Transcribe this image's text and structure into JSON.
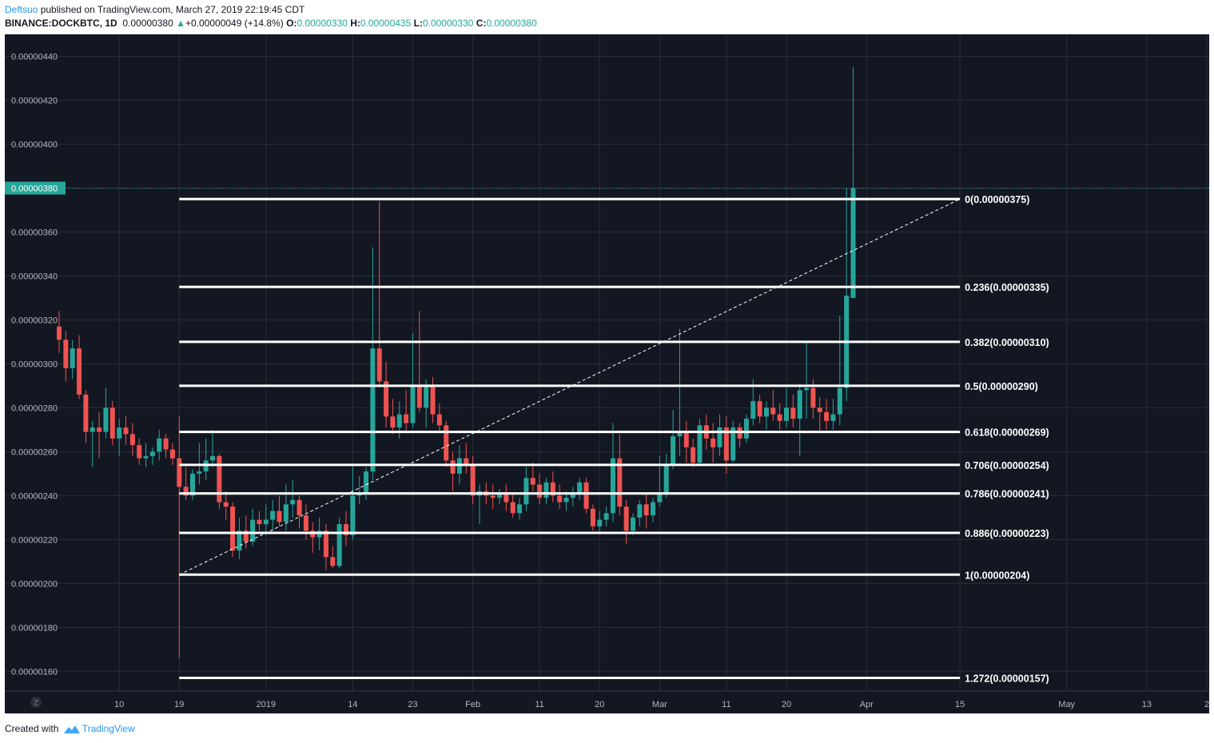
{
  "header": {
    "author": "Deftsuo",
    "published_text": "published on TradingView.com, March 27, 2019 22:19:45 CDT",
    "symbol_line": "BINANCE:DOCKBTC, 1D",
    "last": "0.00000380",
    "change_arrow": "▲",
    "change": "+0.00000049 (+14.8%)",
    "o_label": "O:",
    "o_value": "0.00000330",
    "h_label": "H:",
    "h_value": "0.00000435",
    "l_label": "L:",
    "l_value": "0.00000330",
    "c_label": "C:",
    "c_value": "0.00000380"
  },
  "footer": {
    "created_with": "Created with",
    "brand": "TradingView"
  },
  "colors": {
    "background": "#131722",
    "grid": "#2a2e39",
    "up": "#26a69a",
    "down": "#ef5350",
    "fib_line": "#ffffff",
    "axis_text": "#b2b5be",
    "price_tag": "#26a69a"
  },
  "chart_data": {
    "type": "candlestick",
    "symbol": "BINANCE:DOCKBTC",
    "interval": "1D",
    "ylim": [
      1.51e-06,
      4.5e-06
    ],
    "y_ticks": [
      "0.00000440",
      "0.00000420",
      "0.00000400",
      "0.00000380",
      "0.00000360",
      "0.00000340",
      "0.00000320",
      "0.00000300",
      "0.00000280",
      "0.00000260",
      "0.00000240",
      "0.00000220",
      "0.00000200",
      "0.00000180",
      "0.00000160"
    ],
    "y_tick_values": [
      4.4e-06,
      4.2e-06,
      4e-06,
      3.8e-06,
      3.6e-06,
      3.4e-06,
      3.2e-06,
      3e-06,
      2.8e-06,
      2.6e-06,
      2.4e-06,
      2.2e-06,
      2e-06,
      1.8e-06,
      1.6e-06
    ],
    "x_start_date": "2018-12-01",
    "x_end_date": "2019-05-22",
    "x_ticks": [
      {
        "label": "10",
        "date": "2018-12-10"
      },
      {
        "label": "19",
        "date": "2018-12-19"
      },
      {
        "label": "2019",
        "date": "2019-01-01"
      },
      {
        "label": "14",
        "date": "2019-01-14"
      },
      {
        "label": "23",
        "date": "2019-01-23"
      },
      {
        "label": "Feb",
        "date": "2019-02-01"
      },
      {
        "label": "11",
        "date": "2019-02-11"
      },
      {
        "label": "20",
        "date": "2019-02-20"
      },
      {
        "label": "Mar",
        "date": "2019-03-01"
      },
      {
        "label": "11",
        "date": "2019-03-11"
      },
      {
        "label": "20",
        "date": "2019-03-20"
      },
      {
        "label": "Apr",
        "date": "2019-04-01"
      },
      {
        "label": "15",
        "date": "2019-04-15"
      },
      {
        "label": "May",
        "date": "2019-05-01"
      },
      {
        "label": "13",
        "date": "2019-05-13"
      },
      {
        "label": "2",
        "date": "2019-05-22"
      }
    ],
    "last_price": 3.8e-06,
    "last_price_label": "0.00000380",
    "candles_start_date": "2018-12-01",
    "candles": [
      [
        3.17e-06,
        3.24e-06,
        3.05e-06,
        3.11e-06
      ],
      [
        3.11e-06,
        3.15e-06,
        2.92e-06,
        2.98e-06
      ],
      [
        2.98e-06,
        3.11e-06,
        2.93e-06,
        3.07e-06
      ],
      [
        3.07e-06,
        3.13e-06,
        2.84e-06,
        2.86e-06
      ],
      [
        2.86e-06,
        2.88e-06,
        2.64e-06,
        2.69e-06
      ],
      [
        2.69e-06,
        2.74e-06,
        2.53e-06,
        2.71e-06
      ],
      [
        2.71e-06,
        2.78e-06,
        2.57e-06,
        2.69e-06
      ],
      [
        2.69e-06,
        2.89e-06,
        2.66e-06,
        2.8e-06
      ],
      [
        2.8e-06,
        2.83e-06,
        2.63e-06,
        2.66e-06
      ],
      [
        2.66e-06,
        2.75e-06,
        2.58e-06,
        2.71e-06
      ],
      [
        2.71e-06,
        2.76e-06,
        2.63e-06,
        2.68e-06
      ],
      [
        2.68e-06,
        2.73e-06,
        2.58e-06,
        2.63e-06
      ],
      [
        2.63e-06,
        2.66e-06,
        2.54e-06,
        2.57e-06
      ],
      [
        2.57e-06,
        2.64e-06,
        2.53e-06,
        2.58e-06
      ],
      [
        2.58e-06,
        2.62e-06,
        2.54e-06,
        2.6e-06
      ],
      [
        2.6e-06,
        2.7e-06,
        2.56e-06,
        2.66e-06
      ],
      [
        2.66e-06,
        2.68e-06,
        2.57e-06,
        2.61e-06
      ],
      [
        2.61e-06,
        2.64e-06,
        2.54e-06,
        2.57e-06
      ],
      [
        2.57e-06,
        2.76e-06,
        1.66e-06,
        2.44e-06
      ],
      [
        2.44e-06,
        2.53e-06,
        2.38e-06,
        2.4e-06
      ],
      [
        2.4e-06,
        2.52e-06,
        2.38e-06,
        2.5e-06
      ],
      [
        2.5e-06,
        2.64e-06,
        2.45e-06,
        2.51e-06
      ],
      [
        2.51e-06,
        2.66e-06,
        2.47e-06,
        2.56e-06
      ],
      [
        2.56e-06,
        2.7e-06,
        2.53e-06,
        2.58e-06
      ],
      [
        2.58e-06,
        2.59e-06,
        2.34e-06,
        2.37e-06
      ],
      [
        2.37e-06,
        2.42e-06,
        2.29e-06,
        2.35e-06
      ],
      [
        2.35e-06,
        2.37e-06,
        2.12e-06,
        2.15e-06
      ],
      [
        2.15e-06,
        2.3e-06,
        2.11e-06,
        2.24e-06
      ],
      [
        2.24e-06,
        2.31e-06,
        2.16e-06,
        2.19e-06
      ],
      [
        2.19e-06,
        2.34e-06,
        2.17e-06,
        2.29e-06
      ],
      [
        2.29e-06,
        2.33e-06,
        2.24e-06,
        2.27e-06
      ],
      [
        2.27e-06,
        2.36e-06,
        2.22e-06,
        2.29e-06
      ],
      [
        2.29e-06,
        2.38e-06,
        2.24e-06,
        2.33e-06
      ],
      [
        2.33e-06,
        2.4e-06,
        2.26e-06,
        2.28e-06
      ],
      [
        2.28e-06,
        2.45e-06,
        2.24e-06,
        2.36e-06
      ],
      [
        2.36e-06,
        2.47e-06,
        2.3e-06,
        2.38e-06
      ],
      [
        2.38e-06,
        2.4e-06,
        2.25e-06,
        2.31e-06
      ],
      [
        2.31e-06,
        2.36e-06,
        2.2e-06,
        2.24e-06
      ],
      [
        2.24e-06,
        2.28e-06,
        2.14e-06,
        2.21e-06
      ],
      [
        2.21e-06,
        2.3e-06,
        2.15e-06,
        2.24e-06
      ],
      [
        2.24e-06,
        2.27e-06,
        2.06e-06,
        2.12e-06
      ],
      [
        2.12e-06,
        2.17e-06,
        2.07e-06,
        2.08e-06
      ],
      [
        2.08e-06,
        2.3e-06,
        2.07e-06,
        2.27e-06
      ],
      [
        2.27e-06,
        2.33e-06,
        2.17e-06,
        2.22e-06
      ],
      [
        2.22e-06,
        2.54e-06,
        2.2e-06,
        2.4e-06
      ],
      [
        2.4e-06,
        2.49e-06,
        2.36e-06,
        2.41e-06
      ],
      [
        2.41e-06,
        2.53e-06,
        2.38e-06,
        2.51e-06
      ],
      [
        2.51e-06,
        3.53e-06,
        2.47e-06,
        3.07e-06
      ],
      [
        3.07e-06,
        3.74e-06,
        2.89e-06,
        2.92e-06
      ],
      [
        2.92e-06,
        3.01e-06,
        2.71e-06,
        2.76e-06
      ],
      [
        2.76e-06,
        2.84e-06,
        2.68e-06,
        2.71e-06
      ],
      [
        2.71e-06,
        2.83e-06,
        2.66e-06,
        2.77e-06
      ],
      [
        2.77e-06,
        2.88e-06,
        2.69e-06,
        2.73e-06
      ],
      [
        2.73e-06,
        3.14e-06,
        2.71e-06,
        2.9e-06
      ],
      [
        2.9e-06,
        3.24e-06,
        2.78e-06,
        2.8e-06
      ],
      [
        2.8e-06,
        2.93e-06,
        2.71e-06,
        2.9e-06
      ],
      [
        2.9e-06,
        2.94e-06,
        2.73e-06,
        2.77e-06
      ],
      [
        2.77e-06,
        2.82e-06,
        2.69e-06,
        2.72e-06
      ],
      [
        2.72e-06,
        2.74e-06,
        2.53e-06,
        2.56e-06
      ],
      [
        2.56e-06,
        2.6e-06,
        2.42e-06,
        2.5e-06
      ],
      [
        2.5e-06,
        2.63e-06,
        2.45e-06,
        2.57e-06
      ],
      [
        2.57e-06,
        2.64e-06,
        2.5e-06,
        2.54e-06
      ],
      [
        2.54e-06,
        2.58e-06,
        2.36e-06,
        2.4e-06
      ],
      [
        2.4e-06,
        2.45e-06,
        2.27e-06,
        2.42e-06
      ],
      [
        2.42e-06,
        2.46e-06,
        2.36e-06,
        2.4e-06
      ],
      [
        2.4e-06,
        2.45e-06,
        2.34e-06,
        2.39e-06
      ],
      [
        2.39e-06,
        2.43e-06,
        2.36e-06,
        2.41e-06
      ],
      [
        2.41e-06,
        2.45e-06,
        2.33e-06,
        2.37e-06
      ],
      [
        2.37e-06,
        2.41e-06,
        2.3e-06,
        2.32e-06
      ],
      [
        2.32e-06,
        2.39e-06,
        2.29e-06,
        2.36e-06
      ],
      [
        2.36e-06,
        2.53e-06,
        2.33e-06,
        2.48e-06
      ],
      [
        2.48e-06,
        2.55e-06,
        2.42e-06,
        2.45e-06
      ],
      [
        2.45e-06,
        2.5e-06,
        2.36e-06,
        2.39e-06
      ],
      [
        2.39e-06,
        2.48e-06,
        2.36e-06,
        2.46e-06
      ],
      [
        2.46e-06,
        2.51e-06,
        2.37e-06,
        2.4e-06
      ],
      [
        2.4e-06,
        2.45e-06,
        2.34e-06,
        2.37e-06
      ],
      [
        2.37e-06,
        2.42e-06,
        2.33e-06,
        2.39e-06
      ],
      [
        2.39e-06,
        2.44e-06,
        2.35e-06,
        2.41e-06
      ],
      [
        2.41e-06,
        2.48e-06,
        2.38e-06,
        2.46e-06
      ],
      [
        2.46e-06,
        2.48e-06,
        2.32e-06,
        2.34e-06
      ],
      [
        2.34e-06,
        2.36e-06,
        2.24e-06,
        2.26e-06
      ],
      [
        2.26e-06,
        2.33e-06,
        2.23e-06,
        2.29e-06
      ],
      [
        2.29e-06,
        2.35e-06,
        2.26e-06,
        2.32e-06
      ],
      [
        2.32e-06,
        2.73e-06,
        2.28e-06,
        2.57e-06
      ],
      [
        2.57e-06,
        2.68e-06,
        2.31e-06,
        2.35e-06
      ],
      [
        2.35e-06,
        2.38e-06,
        2.18e-06,
        2.24e-06
      ],
      [
        2.24e-06,
        2.32e-06,
        2.22e-06,
        2.3e-06
      ],
      [
        2.3e-06,
        2.38e-06,
        2.26e-06,
        2.36e-06
      ],
      [
        2.36e-06,
        2.41e-06,
        2.25e-06,
        2.31e-06
      ],
      [
        2.31e-06,
        2.39e-06,
        2.28e-06,
        2.37e-06
      ],
      [
        2.37e-06,
        2.58e-06,
        2.35e-06,
        2.41e-06
      ],
      [
        2.41e-06,
        2.59e-06,
        2.39e-06,
        2.54e-06
      ],
      [
        2.54e-06,
        2.79e-06,
        2.52e-06,
        2.67e-06
      ],
      [
        2.67e-06,
        3.16e-06,
        2.58e-06,
        2.69e-06
      ],
      [
        2.69e-06,
        2.74e-06,
        2.55e-06,
        2.62e-06
      ],
      [
        2.62e-06,
        2.66e-06,
        2.53e-06,
        2.55e-06
      ],
      [
        2.55e-06,
        2.75e-06,
        2.54e-06,
        2.72e-06
      ],
      [
        2.72e-06,
        2.77e-06,
        2.61e-06,
        2.66e-06
      ],
      [
        2.66e-06,
        2.73e-06,
        2.55e-06,
        2.62e-06
      ],
      [
        2.62e-06,
        2.77e-06,
        2.58e-06,
        2.71e-06
      ],
      [
        2.71e-06,
        2.76e-06,
        2.5e-06,
        2.56e-06
      ],
      [
        2.56e-06,
        2.74e-06,
        2.55e-06,
        2.71e-06
      ],
      [
        2.71e-06,
        2.73e-06,
        2.62e-06,
        2.66e-06
      ],
      [
        2.66e-06,
        2.77e-06,
        2.64e-06,
        2.75e-06
      ],
      [
        2.75e-06,
        2.93e-06,
        2.72e-06,
        2.83e-06
      ],
      [
        2.83e-06,
        2.86e-06,
        2.73e-06,
        2.76e-06
      ],
      [
        2.76e-06,
        2.83e-06,
        2.7e-06,
        2.8e-06
      ],
      [
        2.8e-06,
        2.88e-06,
        2.74e-06,
        2.77e-06
      ],
      [
        2.77e-06,
        2.82e-06,
        2.7e-06,
        2.74e-06
      ],
      [
        2.74e-06,
        2.89e-06,
        2.71e-06,
        2.8e-06
      ],
      [
        2.8e-06,
        2.86e-06,
        2.71e-06,
        2.75e-06
      ],
      [
        2.75e-06,
        2.91e-06,
        2.58e-06,
        2.88e-06
      ],
      [
        2.88e-06,
        3.1e-06,
        2.75e-06,
        2.89e-06
      ],
      [
        2.89e-06,
        2.93e-06,
        2.75e-06,
        2.8e-06
      ],
      [
        2.8e-06,
        2.85e-06,
        2.69e-06,
        2.78e-06
      ],
      [
        2.78e-06,
        2.84e-06,
        2.7e-06,
        2.74e-06
      ],
      [
        2.74e-06,
        2.84e-06,
        2.7e-06,
        2.77e-06
      ],
      [
        2.77e-06,
        3.22e-06,
        2.72e-06,
        2.89e-06
      ],
      [
        2.89e-06,
        3.8e-06,
        2.83e-06,
        3.31e-06
      ],
      [
        3.3e-06,
        4.35e-06,
        3.3e-06,
        3.8e-06
      ]
    ],
    "fib_x_start_date": "2018-12-19",
    "fib_x_end_date": "2019-04-15",
    "fib_levels": [
      {
        "price": 3.75e-06,
        "label": "0(0.00000375)"
      },
      {
        "price": 3.35e-06,
        "label": "0.236(0.00000335)"
      },
      {
        "price": 3.1e-06,
        "label": "0.382(0.00000310)"
      },
      {
        "price": 2.9e-06,
        "label": "0.5(0.00000290)"
      },
      {
        "price": 2.69e-06,
        "label": "0.618(0.00000269)"
      },
      {
        "price": 2.54e-06,
        "label": "0.706(0.00000254)"
      },
      {
        "price": 2.41e-06,
        "label": "0.786(0.00000241)"
      },
      {
        "price": 2.23e-06,
        "label": "0.886(0.00000223)"
      },
      {
        "price": 2.04e-06,
        "label": "1(0.00000204)"
      },
      {
        "price": 1.57e-06,
        "label": "1.272(0.00000157)"
      }
    ],
    "trend_line": {
      "from_date": "2018-12-19",
      "from_price": 2.04e-06,
      "to_date": "2019-04-15",
      "to_price": 3.75e-06
    },
    "watermark": "Z"
  }
}
